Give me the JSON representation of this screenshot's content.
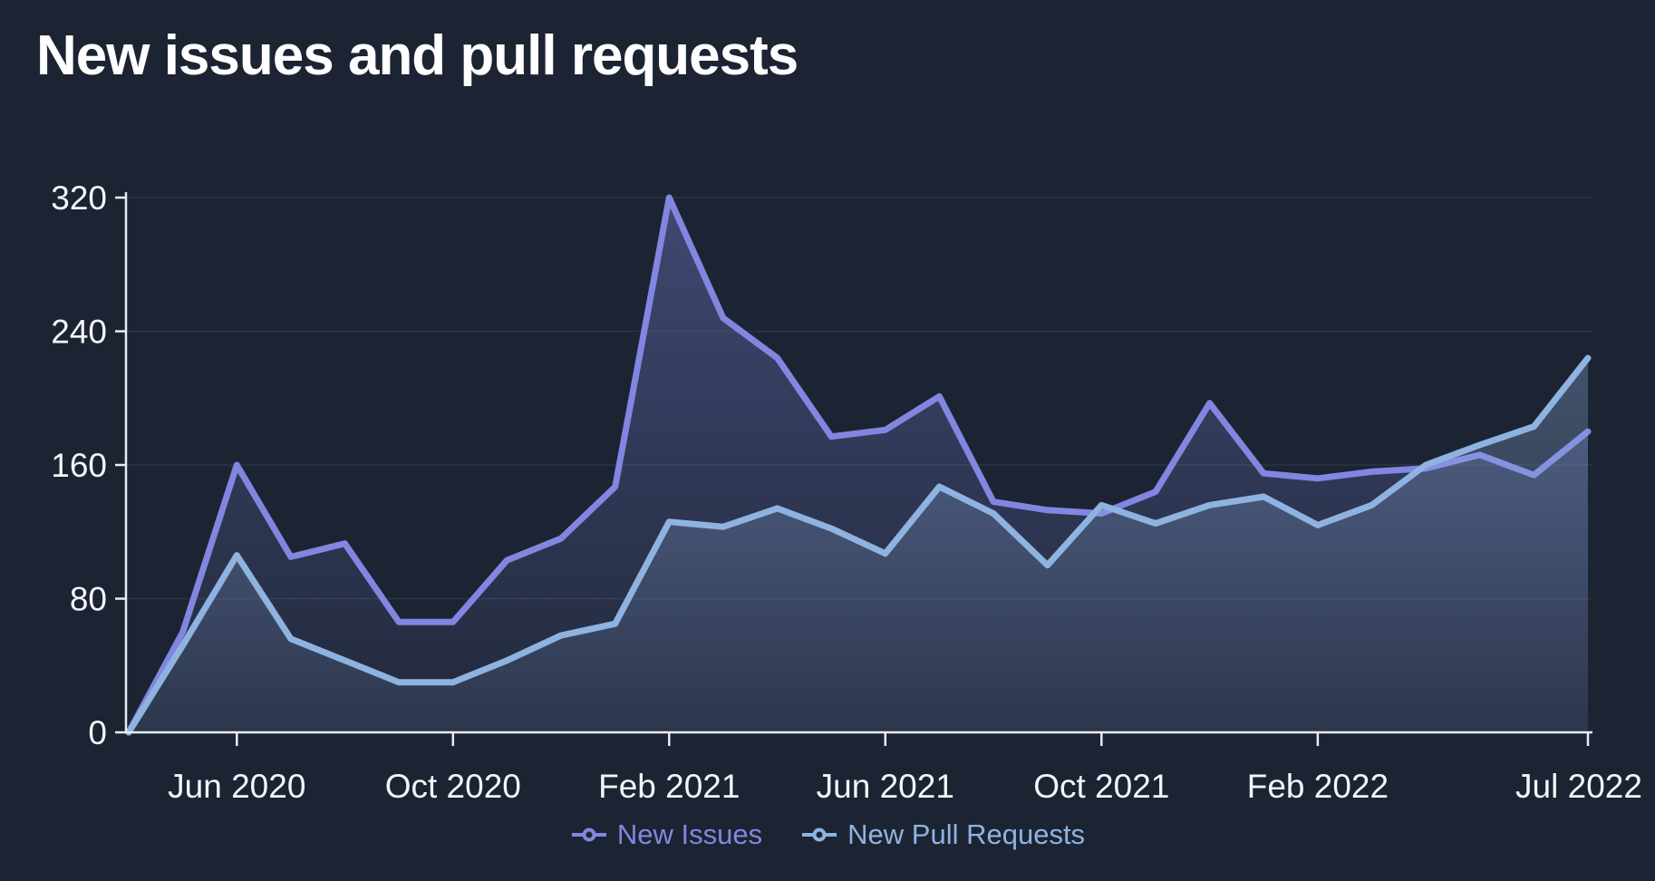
{
  "header": {
    "title": "New issues and pull requests"
  },
  "chart_data": {
    "type": "area",
    "title": "New issues and pull requests",
    "x": [
      "Apr 2020",
      "May 2020",
      "Jun 2020",
      "Jul 2020",
      "Aug 2020",
      "Sep 2020",
      "Oct 2020",
      "Nov 2020",
      "Dec 2020",
      "Jan 2021",
      "Feb 2021",
      "Mar 2021",
      "Apr 2021",
      "May 2021",
      "Jun 2021",
      "Jul 2021",
      "Aug 2021",
      "Sep 2021",
      "Oct 2021",
      "Nov 2021",
      "Dec 2021",
      "Jan 2022",
      "Feb 2022",
      "Mar 2022",
      "Apr 2022",
      "May 2022",
      "Jun 2022",
      "Jul 2022"
    ],
    "series": [
      {
        "name": "New Issues",
        "color": "#8286e0",
        "values": [
          0,
          60,
          160,
          105,
          113,
          66,
          66,
          103,
          116,
          147,
          320,
          248,
          224,
          177,
          181,
          201,
          138,
          133,
          131,
          144,
          197,
          155,
          152,
          156,
          158,
          166,
          154,
          180
        ]
      },
      {
        "name": "New Pull Requests",
        "color": "#8fb3e0",
        "values": [
          0,
          52,
          106,
          56,
          43,
          30,
          30,
          43,
          58,
          65,
          126,
          123,
          134,
          122,
          107,
          147,
          131,
          100,
          136,
          125,
          136,
          141,
          124,
          136,
          160,
          172,
          183,
          224
        ]
      }
    ],
    "xlabel": "",
    "ylabel": "",
    "ylim": [
      0,
      320
    ],
    "yticks": [
      0,
      80,
      160,
      240,
      320
    ],
    "xtick_labels": [
      "Jun 2020",
      "Oct 2020",
      "Feb 2021",
      "Jun 2021",
      "Oct 2021",
      "Feb 2022",
      "Jul 2022"
    ],
    "xtick_indices": [
      2,
      6,
      10,
      14,
      18,
      22,
      27
    ],
    "grid": true,
    "legend_position": "bottom",
    "colors": {
      "background": "#1c2433",
      "axis": "#e9ecf2",
      "tick_label": "#f3f5f9",
      "grid": "rgba(255,255,255,0.07)"
    }
  },
  "legend": {
    "items": [
      {
        "label": "New Issues"
      },
      {
        "label": "New Pull Requests"
      }
    ]
  }
}
